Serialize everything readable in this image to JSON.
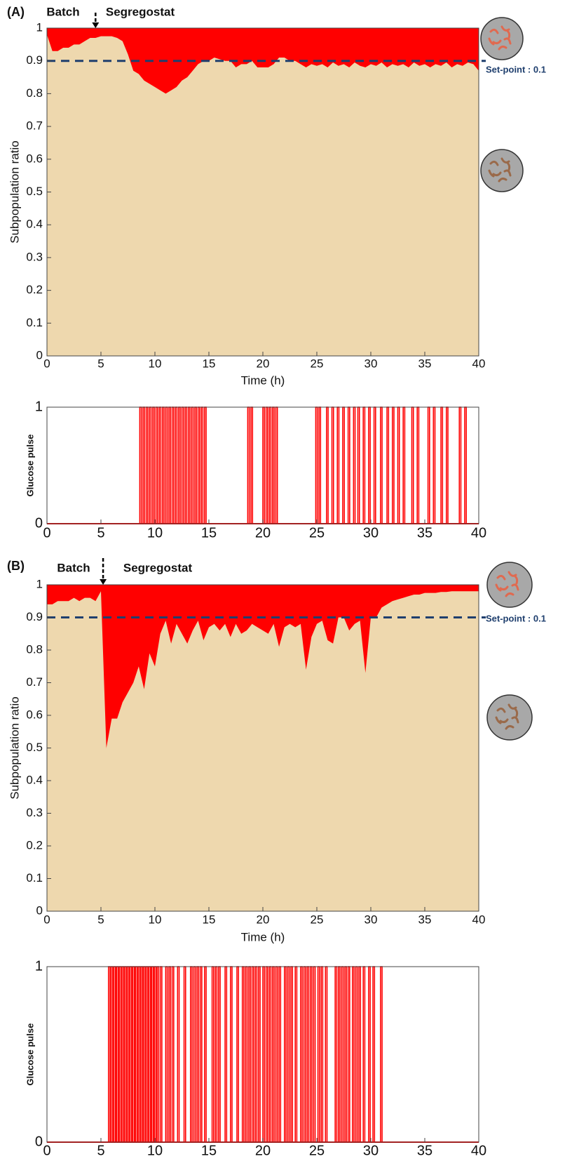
{
  "chart_data": [
    {
      "type": "area",
      "panel_label": "(A)",
      "xlabel": "Time (h)",
      "ylabel": "Subpopulation ratio",
      "annotations": {
        "batch": "Batch",
        "segregostat": "Segregostat",
        "setpoint": "Set-point : 0.1"
      },
      "switch_x": 4.5,
      "reference_line": 0.9,
      "reference_color": "#1f3f6e",
      "color": "#eed8ae",
      "upper_color": "#ff0000",
      "xlim": [
        0,
        40
      ],
      "xticks": [
        0,
        5,
        10,
        15,
        20,
        25,
        30,
        35,
        40
      ],
      "ylim": [
        0,
        1
      ],
      "yticks": [
        0,
        0.1,
        0.2,
        0.3,
        0.4,
        0.5,
        0.6,
        0.7,
        0.8,
        0.9,
        1
      ],
      "x": [
        0,
        0.5,
        1,
        1.5,
        2,
        2.5,
        3,
        3.5,
        4,
        4.5,
        5,
        5.5,
        6,
        6.5,
        7,
        7.5,
        8,
        8.5,
        9,
        9.5,
        10,
        10.5,
        11,
        11.5,
        12,
        12.5,
        13,
        13.5,
        14,
        14.5,
        15,
        15.5,
        16,
        16.5,
        17,
        17.5,
        18,
        18.5,
        19,
        19.5,
        20,
        20.5,
        21,
        21.5,
        22,
        22.5,
        23,
        23.5,
        24,
        24.5,
        25,
        25.5,
        26,
        26.5,
        27,
        27.5,
        28,
        28.5,
        29,
        29.5,
        30,
        30.5,
        31,
        31.5,
        32,
        32.5,
        33,
        33.5,
        34,
        34.5,
        35,
        35.5,
        36,
        36.5,
        37,
        37.5,
        38,
        38.5,
        39,
        39.5,
        40
      ],
      "values": [
        0.98,
        0.93,
        0.93,
        0.94,
        0.94,
        0.95,
        0.95,
        0.96,
        0.97,
        0.97,
        0.975,
        0.975,
        0.975,
        0.97,
        0.96,
        0.92,
        0.87,
        0.86,
        0.84,
        0.83,
        0.82,
        0.81,
        0.8,
        0.81,
        0.82,
        0.84,
        0.85,
        0.87,
        0.89,
        0.9,
        0.9,
        0.91,
        0.905,
        0.9,
        0.9,
        0.88,
        0.89,
        0.89,
        0.9,
        0.88,
        0.88,
        0.88,
        0.89,
        0.91,
        0.91,
        0.9,
        0.9,
        0.89,
        0.88,
        0.89,
        0.885,
        0.89,
        0.88,
        0.895,
        0.885,
        0.89,
        0.88,
        0.895,
        0.885,
        0.88,
        0.89,
        0.885,
        0.895,
        0.88,
        0.89,
        0.885,
        0.89,
        0.88,
        0.895,
        0.885,
        0.89,
        0.88,
        0.89,
        0.885,
        0.895,
        0.88,
        0.89,
        0.885,
        0.895,
        0.89,
        0.87
      ]
    },
    {
      "type": "pulse",
      "ylabel": "Glucose pulse",
      "color": "#ff0000",
      "xlim": [
        0,
        40
      ],
      "xticks": [
        0,
        5,
        10,
        15,
        20,
        25,
        30,
        35,
        40
      ],
      "ylim": [
        0,
        1
      ],
      "yticks": [
        0,
        1
      ],
      "x": [
        8.6,
        8.9,
        9.2,
        9.5,
        9.8,
        10.1,
        10.4,
        10.7,
        11.0,
        11.3,
        11.6,
        11.9,
        12.2,
        12.5,
        12.8,
        13.1,
        13.4,
        13.7,
        14.0,
        14.3,
        14.6,
        18.6,
        18.9,
        20.0,
        20.3,
        20.6,
        20.9,
        21.2,
        24.9,
        25.2,
        25.9,
        26.4,
        26.9,
        27.4,
        27.9,
        28.4,
        28.8,
        29.3,
        29.8,
        30.3,
        30.9,
        31.5,
        32.0,
        32.5,
        33.0,
        33.8,
        34.3,
        35.3,
        35.8,
        36.5,
        37.0,
        38.2,
        38.7
      ],
      "values": [
        1,
        1,
        1,
        1,
        1,
        1,
        1,
        1,
        1,
        1,
        1,
        1,
        1,
        1,
        1,
        1,
        1,
        1,
        1,
        1,
        1,
        1,
        1,
        1,
        1,
        1,
        1,
        1,
        1,
        1,
        1,
        1,
        1,
        1,
        1,
        1,
        1,
        1,
        1,
        1,
        1,
        1,
        1,
        1,
        1,
        1,
        1,
        1,
        1,
        1,
        1,
        1,
        1
      ]
    },
    {
      "type": "area",
      "panel_label": "(B)",
      "xlabel": "Time (h)",
      "ylabel": "Subpopulation ratio",
      "annotations": {
        "batch": "Batch",
        "segregostat": "Segregostat",
        "setpoint": "Set-point : 0.1"
      },
      "switch_x": 5.2,
      "reference_line": 0.9,
      "reference_color": "#1f3f6e",
      "color": "#eed8ae",
      "upper_color": "#ff0000",
      "xlim": [
        0,
        40
      ],
      "xticks": [
        0,
        5,
        10,
        15,
        20,
        25,
        30,
        35,
        40
      ],
      "ylim": [
        0,
        1
      ],
      "yticks": [
        0,
        0.1,
        0.2,
        0.3,
        0.4,
        0.5,
        0.6,
        0.7,
        0.8,
        0.9,
        1
      ],
      "x": [
        0,
        0.5,
        1,
        1.5,
        2,
        2.5,
        3,
        3.5,
        4,
        4.5,
        5,
        5.5,
        6,
        6.5,
        7,
        7.5,
        8,
        8.5,
        9,
        9.5,
        10,
        10.5,
        11,
        11.5,
        12,
        12.5,
        13,
        13.5,
        14,
        14.5,
        15,
        15.5,
        16,
        16.5,
        17,
        17.5,
        18,
        18.5,
        19,
        19.5,
        20,
        20.5,
        21,
        21.5,
        22,
        22.5,
        23,
        23.5,
        24,
        24.5,
        25,
        25.5,
        26,
        26.5,
        27,
        27.5,
        28,
        28.5,
        29,
        29.5,
        30,
        30.5,
        31,
        31.5,
        32,
        32.5,
        33,
        33.5,
        34,
        34.5,
        35,
        35.5,
        36,
        36.5,
        37,
        37.5,
        38,
        38.5,
        39,
        39.5,
        40
      ],
      "values": [
        0.94,
        0.94,
        0.95,
        0.95,
        0.95,
        0.96,
        0.95,
        0.96,
        0.96,
        0.95,
        0.98,
        0.5,
        0.59,
        0.59,
        0.64,
        0.67,
        0.7,
        0.75,
        0.68,
        0.79,
        0.75,
        0.85,
        0.89,
        0.82,
        0.88,
        0.85,
        0.82,
        0.86,
        0.89,
        0.83,
        0.87,
        0.88,
        0.86,
        0.88,
        0.84,
        0.88,
        0.85,
        0.86,
        0.88,
        0.87,
        0.86,
        0.85,
        0.88,
        0.81,
        0.87,
        0.88,
        0.87,
        0.88,
        0.74,
        0.84,
        0.88,
        0.89,
        0.83,
        0.82,
        0.9,
        0.9,
        0.86,
        0.88,
        0.89,
        0.73,
        0.9,
        0.9,
        0.93,
        0.94,
        0.95,
        0.955,
        0.96,
        0.965,
        0.97,
        0.97,
        0.975,
        0.975,
        0.975,
        0.978,
        0.978,
        0.98,
        0.98,
        0.98,
        0.98,
        0.98,
        0.98
      ]
    },
    {
      "type": "pulse",
      "ylabel": "Glucose pulse",
      "color": "#ff0000",
      "xlim": [
        0,
        40
      ],
      "xticks": [
        0,
        5,
        10,
        15,
        20,
        25,
        30,
        35,
        40
      ],
      "ylim": [
        0,
        1
      ],
      "yticks": [
        0,
        1
      ],
      "x": [
        5.7,
        5.95,
        6.2,
        6.45,
        6.7,
        6.95,
        7.2,
        7.45,
        7.7,
        7.95,
        8.2,
        8.45,
        8.7,
        8.95,
        9.2,
        9.45,
        9.7,
        9.95,
        10.2,
        10.5,
        11.0,
        11.3,
        11.6,
        12.1,
        12.7,
        13.3,
        13.6,
        13.9,
        14.2,
        14.6,
        15.3,
        15.6,
        15.9,
        16.5,
        17.0,
        17.6,
        18.1,
        18.4,
        18.7,
        19.0,
        19.3,
        19.6,
        20.0,
        20.3,
        20.6,
        20.9,
        21.2,
        21.5,
        22.0,
        22.3,
        22.6,
        23.0,
        23.5,
        23.8,
        24.1,
        24.4,
        24.7,
        25.1,
        25.4,
        25.8,
        26.7,
        27.0,
        27.3,
        27.6,
        27.9,
        28.3,
        28.6,
        28.9,
        29.3,
        29.8,
        30.2,
        30.9
      ],
      "values": [
        1,
        1,
        1,
        1,
        1,
        1,
        1,
        1,
        1,
        1,
        1,
        1,
        1,
        1,
        1,
        1,
        1,
        1,
        1,
        1,
        1,
        1,
        1,
        1,
        1,
        1,
        1,
        1,
        1,
        1,
        1,
        1,
        1,
        1,
        1,
        1,
        1,
        1,
        1,
        1,
        1,
        1,
        1,
        1,
        1,
        1,
        1,
        1,
        1,
        1,
        1,
        1,
        1,
        1,
        1,
        1,
        1,
        1,
        1,
        1,
        1,
        1,
        1,
        1,
        1,
        1,
        1,
        1,
        1,
        1,
        1,
        1
      ]
    }
  ]
}
